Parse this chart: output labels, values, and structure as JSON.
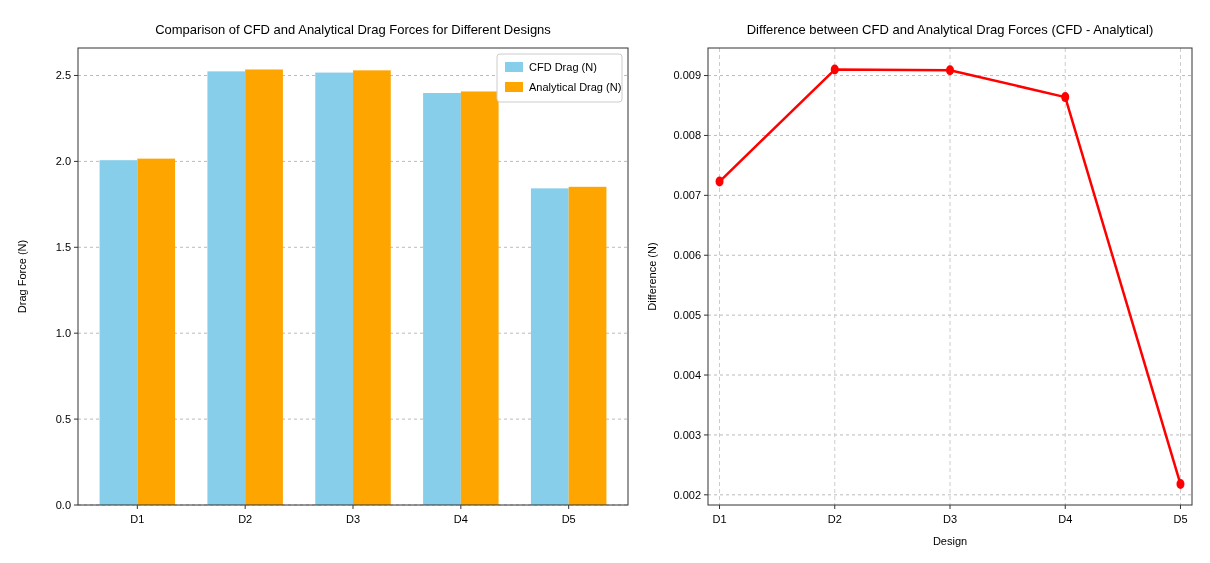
{
  "chart_data": [
    {
      "type": "bar",
      "title": "Comparison of CFD and Analytical Drag Forces for Different Designs",
      "ylabel": "Drag Force (N)",
      "categories": [
        "D1",
        "D2",
        "D3",
        "D4",
        "D5"
      ],
      "series": [
        {
          "name": "CFD Drag (N)",
          "color": "#87ceeb",
          "values": [
            2.007,
            2.524,
            2.517,
            2.398,
            1.843
          ]
        },
        {
          "name": "Analytical Drag (N)",
          "color": "#ffa500",
          "values": [
            2.016,
            2.535,
            2.53,
            2.407,
            1.852
          ]
        }
      ],
      "ylim": [
        0,
        2.66
      ],
      "yticks": [
        {
          "value": 0,
          "label": "0.0"
        },
        2.5,
        {
          "value": 2,
          "label": "2.0"
        },
        1.5,
        {
          "value": 1,
          "label": "1.0"
        },
        0.5
      ],
      "grid": "y",
      "legend": "top right"
    },
    {
      "type": "line",
      "title": "Difference between CFD and Analytical Drag Forces (CFD - Analytical)",
      "xlabel": "Design",
      "ylabel": "Difference (N)",
      "categories": [
        "D1",
        "D2",
        "D3",
        "D4",
        "D5"
      ],
      "series": [
        {
          "color": "#ff0000",
          "values": [
            0.00723,
            0.0091,
            0.00909,
            0.00864,
            0.00218
          ]
        }
      ],
      "ylim": [
        0.00183,
        0.00946
      ],
      "yticks": [
        0.002,
        0.003,
        0.004,
        0.005,
        0.006,
        0.007,
        0.008,
        0.009
      ],
      "grid": true,
      "marker": "circle",
      "line_style": "solid"
    }
  ]
}
